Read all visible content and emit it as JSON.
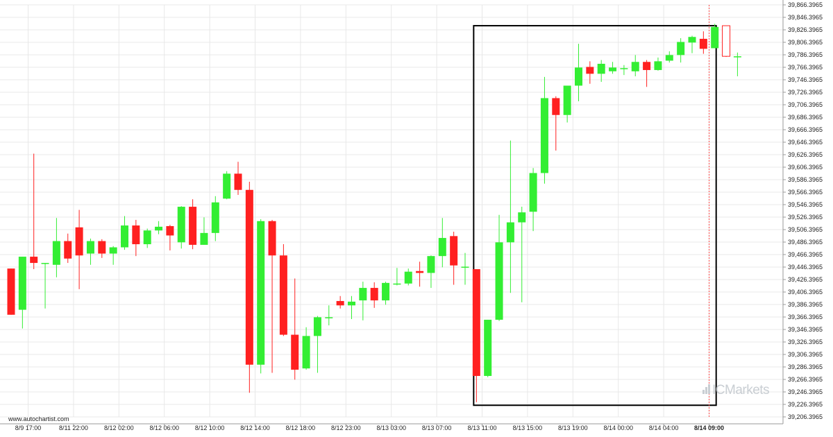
{
  "source_label": "www.autochartist.com",
  "brand": {
    "text": "ICMarkets"
  },
  "colors": {
    "up": "#33ee33",
    "down": "#ff2020",
    "grid": "#e8e8e8",
    "pattern_box": "#000000"
  },
  "chart_data": {
    "type": "candlestick",
    "title": "",
    "xlabel": "",
    "ylabel": "",
    "ylim": [
      39206.3965,
      39866.3965
    ],
    "y_ticks": [
      "39,866.3965",
      "39,846.3965",
      "39,826.3965",
      "39,806.3965",
      "39,786.3965",
      "39,766.3965",
      "39,746.3965",
      "39,726.3965",
      "39,706.3965",
      "39,686.3965",
      "39,666.3965",
      "39,646.3965",
      "39,626.3965",
      "39,606.3965",
      "39,586.3965",
      "39,566.3965",
      "39,546.3965",
      "39,526.3965",
      "39,506.3965",
      "39,486.3965",
      "39,466.3965",
      "39,446.3965",
      "39,426.3965",
      "39,406.3965",
      "39,386.3965",
      "39,366.3965",
      "39,346.3965",
      "39,326.3965",
      "39,306.3965",
      "39,286.3965",
      "39,266.3965",
      "39,246.3965",
      "39,226.3965",
      "39,206.3965"
    ],
    "x_ticks": [
      {
        "label": "8/9 17:00",
        "index": 1.5
      },
      {
        "label": "8/11 22:00",
        "index": 5.5
      },
      {
        "label": "8/12 02:00",
        "index": 9.5
      },
      {
        "label": "8/12 06:00",
        "index": 13.5
      },
      {
        "label": "8/12 10:00",
        "index": 17.5
      },
      {
        "label": "8/12 14:00",
        "index": 21.5
      },
      {
        "label": "8/12 18:00",
        "index": 25.5
      },
      {
        "label": "8/12 23:00",
        "index": 29.5
      },
      {
        "label": "8/13 03:00",
        "index": 33.5
      },
      {
        "label": "8/13 07:00",
        "index": 37.5
      },
      {
        "label": "8/13 11:00",
        "index": 41.5
      },
      {
        "label": "8/13 15:00",
        "index": 45.5
      },
      {
        "label": "8/13 19:00",
        "index": 49.5
      },
      {
        "label": "8/14 00:00",
        "index": 53.5
      },
      {
        "label": "8/14 04:00",
        "index": 57.5
      },
      {
        "label": "8/14 09:00",
        "index": 61.5,
        "highlight": true
      }
    ],
    "candles": [
      {
        "o": 39444,
        "h": 39444,
        "l": 39370,
        "c": 39370
      },
      {
        "o": 39378,
        "h": 39463,
        "l": 39348,
        "c": 39463
      },
      {
        "o": 39463,
        "h": 39628,
        "l": 39443,
        "c": 39453
      },
      {
        "o": 39453,
        "h": 39453,
        "l": 39380,
        "c": 39453
      },
      {
        "o": 39450,
        "h": 39525,
        "l": 39430,
        "c": 39488
      },
      {
        "o": 39488,
        "h": 39500,
        "l": 39453,
        "c": 39460
      },
      {
        "o": 39510,
        "h": 39538,
        "l": 39411,
        "c": 39465
      },
      {
        "o": 39468,
        "h": 39492,
        "l": 39450,
        "c": 39488
      },
      {
        "o": 39488,
        "h": 39491,
        "l": 39461,
        "c": 39468
      },
      {
        "o": 39468,
        "h": 39480,
        "l": 39450,
        "c": 39478
      },
      {
        "o": 39478,
        "h": 39528,
        "l": 39474,
        "c": 39513
      },
      {
        "o": 39513,
        "h": 39522,
        "l": 39464,
        "c": 39483
      },
      {
        "o": 39483,
        "h": 39508,
        "l": 39477,
        "c": 39505
      },
      {
        "o": 39505,
        "h": 39520,
        "l": 39499,
        "c": 39511
      },
      {
        "o": 39512,
        "h": 39514,
        "l": 39473,
        "c": 39497
      },
      {
        "o": 39486,
        "h": 39544,
        "l": 39476,
        "c": 39543
      },
      {
        "o": 39543,
        "h": 39555,
        "l": 39475,
        "c": 39482
      },
      {
        "o": 39482,
        "h": 39526,
        "l": 39482,
        "c": 39501
      },
      {
        "o": 39501,
        "h": 39560,
        "l": 39488,
        "c": 39550
      },
      {
        "o": 39556,
        "h": 39600,
        "l": 39555,
        "c": 39596
      },
      {
        "o": 39596,
        "h": 39615,
        "l": 39562,
        "c": 39570
      },
      {
        "o": 39570,
        "h": 39583,
        "l": 39245,
        "c": 39290
      },
      {
        "o": 39290,
        "h": 39523,
        "l": 39276,
        "c": 39520
      },
      {
        "o": 39520,
        "h": 39522,
        "l": 39277,
        "c": 39465
      },
      {
        "o": 39465,
        "h": 39483,
        "l": 39336,
        "c": 39338
      },
      {
        "o": 39338,
        "h": 39428,
        "l": 39266,
        "c": 39282
      },
      {
        "o": 39284,
        "h": 39350,
        "l": 39282,
        "c": 39336
      },
      {
        "o": 39336,
        "h": 39368,
        "l": 39277,
        "c": 39366
      },
      {
        "o": 39366,
        "h": 39385,
        "l": 39353,
        "c": 39366
      },
      {
        "o": 39392,
        "h": 39400,
        "l": 39380,
        "c": 39385
      },
      {
        "o": 39385,
        "h": 39400,
        "l": 39363,
        "c": 39391
      },
      {
        "o": 39393,
        "h": 39423,
        "l": 39361,
        "c": 39413
      },
      {
        "o": 39413,
        "h": 39422,
        "l": 39381,
        "c": 39393
      },
      {
        "o": 39393,
        "h": 39423,
        "l": 39386,
        "c": 39421
      },
      {
        "o": 39420,
        "h": 39445,
        "l": 39417,
        "c": 39420
      },
      {
        "o": 39420,
        "h": 39444,
        "l": 39417,
        "c": 39439
      },
      {
        "o": 39440,
        "h": 39455,
        "l": 39415,
        "c": 39437
      },
      {
        "o": 39437,
        "h": 39465,
        "l": 39413,
        "c": 39464
      },
      {
        "o": 39464,
        "h": 39525,
        "l": 39446,
        "c": 39493
      },
      {
        "o": 39496,
        "h": 39503,
        "l": 39418,
        "c": 39449
      },
      {
        "o": 39447,
        "h": 39469,
        "l": 39418,
        "c": 39447
      },
      {
        "o": 39443,
        "h": 39443,
        "l": 39230,
        "c": 39272
      },
      {
        "o": 39272,
        "h": 39362,
        "l": 39270,
        "c": 39362
      },
      {
        "o": 39362,
        "h": 39530,
        "l": 39360,
        "c": 39486
      },
      {
        "o": 39486,
        "h": 39649,
        "l": 39405,
        "c": 39518
      },
      {
        "o": 39518,
        "h": 39543,
        "l": 39390,
        "c": 39534
      },
      {
        "o": 39535,
        "h": 39605,
        "l": 39504,
        "c": 39597
      },
      {
        "o": 39597,
        "h": 39751,
        "l": 39580,
        "c": 39717
      },
      {
        "o": 39717,
        "h": 39720,
        "l": 39633,
        "c": 39690
      },
      {
        "o": 39690,
        "h": 39734,
        "l": 39678,
        "c": 39737
      },
      {
        "o": 39737,
        "h": 39804,
        "l": 39712,
        "c": 39766
      },
      {
        "o": 39767,
        "h": 39776,
        "l": 39740,
        "c": 39756
      },
      {
        "o": 39756,
        "h": 39778,
        "l": 39743,
        "c": 39772
      },
      {
        "o": 39760,
        "h": 39775,
        "l": 39756,
        "c": 39766
      },
      {
        "o": 39765,
        "h": 39770,
        "l": 39754,
        "c": 39765
      },
      {
        "o": 39760,
        "h": 39786,
        "l": 39752,
        "c": 39775
      },
      {
        "o": 39775,
        "h": 39778,
        "l": 39735,
        "c": 39762
      },
      {
        "o": 39762,
        "h": 39782,
        "l": 39761,
        "c": 39776
      },
      {
        "o": 39777,
        "h": 39792,
        "l": 39774,
        "c": 39786
      },
      {
        "o": 39786,
        "h": 39813,
        "l": 39774,
        "c": 39807
      },
      {
        "o": 39806,
        "h": 39817,
        "l": 39789,
        "c": 39815
      },
      {
        "o": 39812,
        "h": 39824,
        "l": 39788,
        "c": 39796
      },
      {
        "o": 39797,
        "h": 39836,
        "l": 39797,
        "c": 39831
      },
      {
        "o": 39833,
        "h": 39833,
        "l": 39783,
        "c": 39784
      },
      {
        "o": 39784,
        "h": 39790,
        "l": 39752,
        "c": 39784
      }
    ],
    "pattern_box": {
      "start_index": 41,
      "end_index": 62,
      "top": 39833,
      "bottom": 39225
    }
  }
}
